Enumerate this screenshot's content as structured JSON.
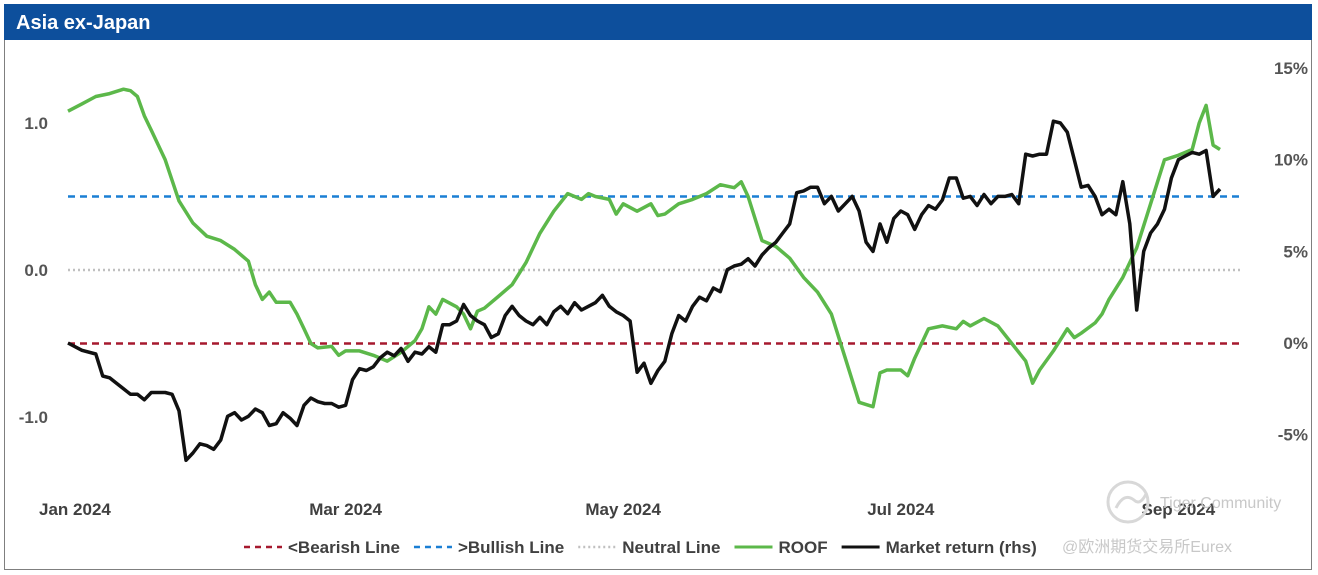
{
  "window": {
    "title": "Asia ex-Japan"
  },
  "watermark": {
    "line1": "Tiger Community",
    "line2": "@欧洲期货交易所Eurex"
  },
  "colors": {
    "title_bar": "#0d4f9c",
    "bearish": "#a6192e",
    "bullish": "#1a7fd4",
    "neutral": "#c0c0c0",
    "roof": "#5cb84a",
    "market": "#111111"
  },
  "chart_data": {
    "type": "line",
    "title": "Asia ex-Japan",
    "y_left": {
      "range": [
        -1.3,
        1.4
      ],
      "ticks": [
        1.0,
        0.0,
        -1.0
      ],
      "tick_labels": [
        "1.0",
        "0.0",
        "-1.0"
      ]
    },
    "y_right": {
      "range": [
        -7.0,
        16.0
      ],
      "ticks": [
        15,
        10,
        5,
        0,
        -5
      ],
      "tick_labels": [
        "15%",
        "10%",
        "5%",
        "0%",
        "-5%"
      ]
    },
    "x_labels": [
      {
        "label": "Jan 2024",
        "t": 0.05
      },
      {
        "label": "Mar 2024",
        "t": 2.0
      },
      {
        "label": "May 2024",
        "t": 4.0
      },
      {
        "label": "Jul 2024",
        "t": 6.0
      },
      {
        "label": "Sep 2024",
        "t": 8.0
      }
    ],
    "x_range": [
      0.0,
      8.3
    ],
    "reference_lines": [
      {
        "name": "<Bearish Line",
        "value": -0.5,
        "axis": "left"
      },
      {
        "name": ">Bullish Line",
        "value": 0.5,
        "axis": "left"
      },
      {
        "name": "Neutral Line",
        "value": 0.0,
        "axis": "left"
      }
    ],
    "series": [
      {
        "name": "ROOF",
        "axis": "left",
        "points": [
          [
            0.0,
            1.08
          ],
          [
            0.1,
            1.13
          ],
          [
            0.2,
            1.18
          ],
          [
            0.3,
            1.2
          ],
          [
            0.4,
            1.23
          ],
          [
            0.45,
            1.22
          ],
          [
            0.5,
            1.18
          ],
          [
            0.55,
            1.05
          ],
          [
            0.6,
            0.95
          ],
          [
            0.7,
            0.75
          ],
          [
            0.8,
            0.47
          ],
          [
            0.9,
            0.32
          ],
          [
            1.0,
            0.23
          ],
          [
            1.1,
            0.2
          ],
          [
            1.2,
            0.14
          ],
          [
            1.3,
            0.06
          ],
          [
            1.35,
            -0.1
          ],
          [
            1.4,
            -0.2
          ],
          [
            1.45,
            -0.15
          ],
          [
            1.5,
            -0.22
          ],
          [
            1.6,
            -0.22
          ],
          [
            1.65,
            -0.3
          ],
          [
            1.7,
            -0.4
          ],
          [
            1.75,
            -0.5
          ],
          [
            1.8,
            -0.53
          ],
          [
            1.9,
            -0.52
          ],
          [
            1.95,
            -0.58
          ],
          [
            2.0,
            -0.55
          ],
          [
            2.1,
            -0.55
          ],
          [
            2.2,
            -0.58
          ],
          [
            2.3,
            -0.62
          ],
          [
            2.4,
            -0.56
          ],
          [
            2.5,
            -0.48
          ],
          [
            2.55,
            -0.4
          ],
          [
            2.6,
            -0.25
          ],
          [
            2.65,
            -0.3
          ],
          [
            2.7,
            -0.2
          ],
          [
            2.8,
            -0.25
          ],
          [
            2.85,
            -0.3
          ],
          [
            2.9,
            -0.4
          ],
          [
            2.95,
            -0.28
          ],
          [
            3.0,
            -0.26
          ],
          [
            3.1,
            -0.18
          ],
          [
            3.2,
            -0.1
          ],
          [
            3.3,
            0.05
          ],
          [
            3.4,
            0.25
          ],
          [
            3.5,
            0.4
          ],
          [
            3.6,
            0.52
          ],
          [
            3.7,
            0.48
          ],
          [
            3.75,
            0.52
          ],
          [
            3.8,
            0.5
          ],
          [
            3.9,
            0.48
          ],
          [
            3.95,
            0.38
          ],
          [
            4.0,
            0.45
          ],
          [
            4.1,
            0.4
          ],
          [
            4.2,
            0.45
          ],
          [
            4.25,
            0.37
          ],
          [
            4.3,
            0.38
          ],
          [
            4.4,
            0.45
          ],
          [
            4.5,
            0.48
          ],
          [
            4.6,
            0.52
          ],
          [
            4.7,
            0.58
          ],
          [
            4.8,
            0.56
          ],
          [
            4.85,
            0.6
          ],
          [
            4.9,
            0.5
          ],
          [
            5.0,
            0.2
          ],
          [
            5.1,
            0.16
          ],
          [
            5.2,
            0.08
          ],
          [
            5.3,
            -0.05
          ],
          [
            5.4,
            -0.15
          ],
          [
            5.5,
            -0.3
          ],
          [
            5.6,
            -0.6
          ],
          [
            5.7,
            -0.9
          ],
          [
            5.8,
            -0.93
          ],
          [
            5.85,
            -0.7
          ],
          [
            5.9,
            -0.68
          ],
          [
            6.0,
            -0.68
          ],
          [
            6.05,
            -0.72
          ],
          [
            6.1,
            -0.6
          ],
          [
            6.2,
            -0.4
          ],
          [
            6.3,
            -0.38
          ],
          [
            6.4,
            -0.4
          ],
          [
            6.45,
            -0.35
          ],
          [
            6.5,
            -0.38
          ],
          [
            6.6,
            -0.33
          ],
          [
            6.7,
            -0.38
          ],
          [
            6.8,
            -0.5
          ],
          [
            6.9,
            -0.62
          ],
          [
            6.95,
            -0.77
          ],
          [
            7.0,
            -0.68
          ],
          [
            7.1,
            -0.55
          ],
          [
            7.2,
            -0.4
          ],
          [
            7.25,
            -0.46
          ],
          [
            7.3,
            -0.43
          ],
          [
            7.4,
            -0.36
          ],
          [
            7.45,
            -0.3
          ],
          [
            7.5,
            -0.2
          ],
          [
            7.6,
            -0.05
          ],
          [
            7.7,
            0.15
          ],
          [
            7.8,
            0.45
          ],
          [
            7.9,
            0.75
          ],
          [
            8.0,
            0.78
          ],
          [
            8.1,
            0.82
          ],
          [
            8.15,
            1.0
          ],
          [
            8.2,
            1.12
          ],
          [
            8.25,
            0.85
          ],
          [
            8.3,
            0.82
          ]
        ]
      },
      {
        "name": "Market return (rhs)",
        "axis": "right",
        "points": [
          [
            0.0,
            0.0
          ],
          [
            0.1,
            -0.4
          ],
          [
            0.2,
            -0.6
          ],
          [
            0.25,
            -1.8
          ],
          [
            0.3,
            -1.9
          ],
          [
            0.4,
            -2.5
          ],
          [
            0.45,
            -2.8
          ],
          [
            0.5,
            -2.8
          ],
          [
            0.55,
            -3.1
          ],
          [
            0.6,
            -2.7
          ],
          [
            0.7,
            -2.7
          ],
          [
            0.75,
            -2.8
          ],
          [
            0.8,
            -3.7
          ],
          [
            0.85,
            -6.4
          ],
          [
            0.9,
            -6.0
          ],
          [
            0.95,
            -5.5
          ],
          [
            1.0,
            -5.6
          ],
          [
            1.05,
            -5.8
          ],
          [
            1.1,
            -5.3
          ],
          [
            1.15,
            -4.0
          ],
          [
            1.2,
            -3.8
          ],
          [
            1.25,
            -4.2
          ],
          [
            1.3,
            -4.0
          ],
          [
            1.35,
            -3.6
          ],
          [
            1.4,
            -3.8
          ],
          [
            1.45,
            -4.5
          ],
          [
            1.5,
            -4.4
          ],
          [
            1.55,
            -3.8
          ],
          [
            1.6,
            -4.1
          ],
          [
            1.65,
            -4.5
          ],
          [
            1.7,
            -3.4
          ],
          [
            1.75,
            -3.0
          ],
          [
            1.8,
            -3.2
          ],
          [
            1.85,
            -3.3
          ],
          [
            1.9,
            -3.3
          ],
          [
            1.95,
            -3.5
          ],
          [
            2.0,
            -3.4
          ],
          [
            2.05,
            -2.0
          ],
          [
            2.1,
            -1.4
          ],
          [
            2.15,
            -1.5
          ],
          [
            2.2,
            -1.3
          ],
          [
            2.25,
            -0.8
          ],
          [
            2.3,
            -0.5
          ],
          [
            2.35,
            -0.7
          ],
          [
            2.4,
            -0.3
          ],
          [
            2.45,
            -1.0
          ],
          [
            2.5,
            -0.5
          ],
          [
            2.55,
            -0.6
          ],
          [
            2.6,
            -0.2
          ],
          [
            2.65,
            -0.5
          ],
          [
            2.7,
            1.0
          ],
          [
            2.75,
            1.0
          ],
          [
            2.8,
            1.2
          ],
          [
            2.85,
            2.1
          ],
          [
            2.9,
            1.5
          ],
          [
            2.95,
            1.2
          ],
          [
            3.0,
            1.0
          ],
          [
            3.05,
            0.3
          ],
          [
            3.1,
            0.5
          ],
          [
            3.15,
            1.5
          ],
          [
            3.2,
            2.0
          ],
          [
            3.25,
            1.5
          ],
          [
            3.3,
            1.2
          ],
          [
            3.35,
            1.0
          ],
          [
            3.4,
            1.4
          ],
          [
            3.45,
            1.0
          ],
          [
            3.5,
            1.7
          ],
          [
            3.55,
            2.0
          ],
          [
            3.6,
            1.6
          ],
          [
            3.65,
            2.2
          ],
          [
            3.7,
            1.8
          ],
          [
            3.75,
            2.0
          ],
          [
            3.8,
            2.2
          ],
          [
            3.85,
            2.6
          ],
          [
            3.9,
            2.0
          ],
          [
            3.95,
            1.7
          ],
          [
            4.0,
            1.5
          ],
          [
            4.05,
            1.2
          ],
          [
            4.1,
            -1.6
          ],
          [
            4.15,
            -1.1
          ],
          [
            4.2,
            -2.2
          ],
          [
            4.25,
            -1.5
          ],
          [
            4.3,
            -1.0
          ],
          [
            4.35,
            0.5
          ],
          [
            4.4,
            1.5
          ],
          [
            4.45,
            1.2
          ],
          [
            4.5,
            2.0
          ],
          [
            4.55,
            2.5
          ],
          [
            4.6,
            2.3
          ],
          [
            4.65,
            3.0
          ],
          [
            4.7,
            2.8
          ],
          [
            4.75,
            4.0
          ],
          [
            4.8,
            4.2
          ],
          [
            4.85,
            4.3
          ],
          [
            4.9,
            4.6
          ],
          [
            4.95,
            4.2
          ],
          [
            5.0,
            4.8
          ],
          [
            5.05,
            5.2
          ],
          [
            5.1,
            5.5
          ],
          [
            5.15,
            6.0
          ],
          [
            5.2,
            6.5
          ],
          [
            5.25,
            8.2
          ],
          [
            5.3,
            8.3
          ],
          [
            5.35,
            8.5
          ],
          [
            5.4,
            8.5
          ],
          [
            5.45,
            7.6
          ],
          [
            5.5,
            8.0
          ],
          [
            5.55,
            7.2
          ],
          [
            5.6,
            7.6
          ],
          [
            5.65,
            8.0
          ],
          [
            5.7,
            7.2
          ],
          [
            5.75,
            5.5
          ],
          [
            5.8,
            5.0
          ],
          [
            5.85,
            6.5
          ],
          [
            5.9,
            5.5
          ],
          [
            5.95,
            6.8
          ],
          [
            6.0,
            7.2
          ],
          [
            6.05,
            7.0
          ],
          [
            6.1,
            6.2
          ],
          [
            6.15,
            7.0
          ],
          [
            6.2,
            7.5
          ],
          [
            6.25,
            7.3
          ],
          [
            6.3,
            7.8
          ],
          [
            6.35,
            9.0
          ],
          [
            6.4,
            9.0
          ],
          [
            6.45,
            7.9
          ],
          [
            6.5,
            8.0
          ],
          [
            6.55,
            7.5
          ],
          [
            6.6,
            8.1
          ],
          [
            6.65,
            7.6
          ],
          [
            6.7,
            8.0
          ],
          [
            6.75,
            8.0
          ],
          [
            6.8,
            8.1
          ],
          [
            6.85,
            7.6
          ],
          [
            6.9,
            10.3
          ],
          [
            6.95,
            10.2
          ],
          [
            7.0,
            10.3
          ],
          [
            7.05,
            10.3
          ],
          [
            7.1,
            12.1
          ],
          [
            7.15,
            12.0
          ],
          [
            7.2,
            11.5
          ],
          [
            7.25,
            10.0
          ],
          [
            7.3,
            8.5
          ],
          [
            7.35,
            8.6
          ],
          [
            7.4,
            8.0
          ],
          [
            7.45,
            7.0
          ],
          [
            7.5,
            7.3
          ],
          [
            7.55,
            7.0
          ],
          [
            7.6,
            8.8
          ],
          [
            7.65,
            6.5
          ],
          [
            7.7,
            1.8
          ],
          [
            7.75,
            5.0
          ],
          [
            7.8,
            6.0
          ],
          [
            7.85,
            6.5
          ],
          [
            7.9,
            7.3
          ],
          [
            7.95,
            9.0
          ],
          [
            8.0,
            10.0
          ],
          [
            8.05,
            10.2
          ],
          [
            8.1,
            10.4
          ],
          [
            8.15,
            10.3
          ],
          [
            8.2,
            10.5
          ],
          [
            8.25,
            8.0
          ],
          [
            8.3,
            8.4
          ]
        ]
      }
    ],
    "legend": [
      {
        "label": "<Bearish Line",
        "style": "dash",
        "color_key": "bearish"
      },
      {
        "label": ">Bullish Line",
        "style": "dash",
        "color_key": "bullish"
      },
      {
        "label": "Neutral Line",
        "style": "dot",
        "color_key": "neutral"
      },
      {
        "label": "ROOF",
        "style": "solid",
        "color_key": "roof"
      },
      {
        "label": "Market return (rhs)",
        "style": "solid",
        "color_key": "market"
      }
    ]
  }
}
